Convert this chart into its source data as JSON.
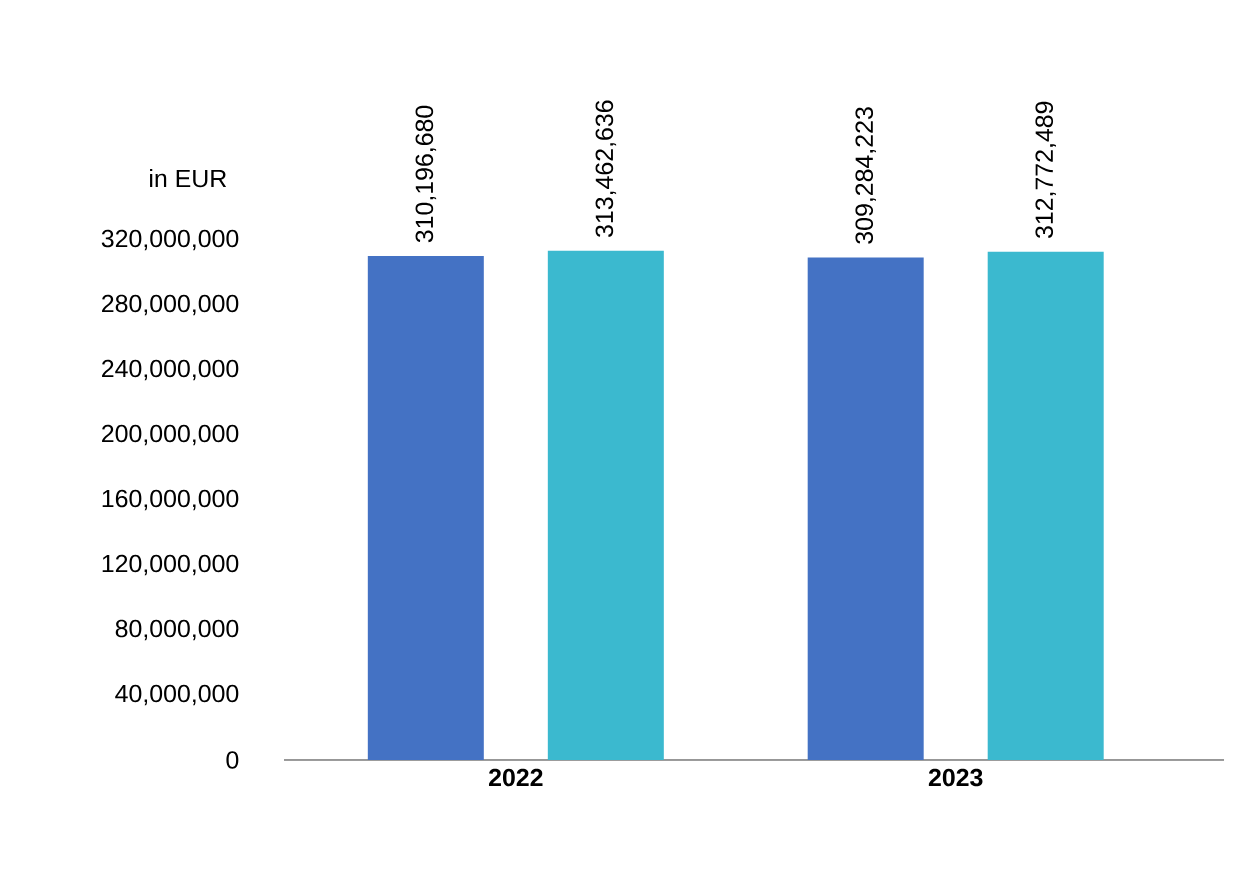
{
  "chart_data": {
    "type": "bar",
    "ylabel": "in EUR",
    "categories": [
      "2022",
      "2023"
    ],
    "series": [
      {
        "color": "#4472c4",
        "values": [
          310196680,
          309284223
        ],
        "value_labels": [
          "310,196,680",
          "309,284,223"
        ]
      },
      {
        "color": "#3bb9cf",
        "values": [
          313462636,
          312772489
        ],
        "value_labels": [
          "313,462,636",
          "312,772,489"
        ]
      }
    ],
    "ylim": [
      0,
      320000000
    ],
    "yticks": [
      {
        "value": 0,
        "label": "0"
      },
      {
        "value": 40000000,
        "label": "40,000,000"
      },
      {
        "value": 80000000,
        "label": "80,000,000"
      },
      {
        "value": 120000000,
        "label": "120,000,000"
      },
      {
        "value": 160000000,
        "label": "160,000,000"
      },
      {
        "value": 200000000,
        "label": "200,000,000"
      },
      {
        "value": 240000000,
        "label": "240,000,000"
      },
      {
        "value": 280000000,
        "label": "280,000,000"
      },
      {
        "value": 320000000,
        "label": "320,000,000"
      }
    ],
    "grid": false
  }
}
